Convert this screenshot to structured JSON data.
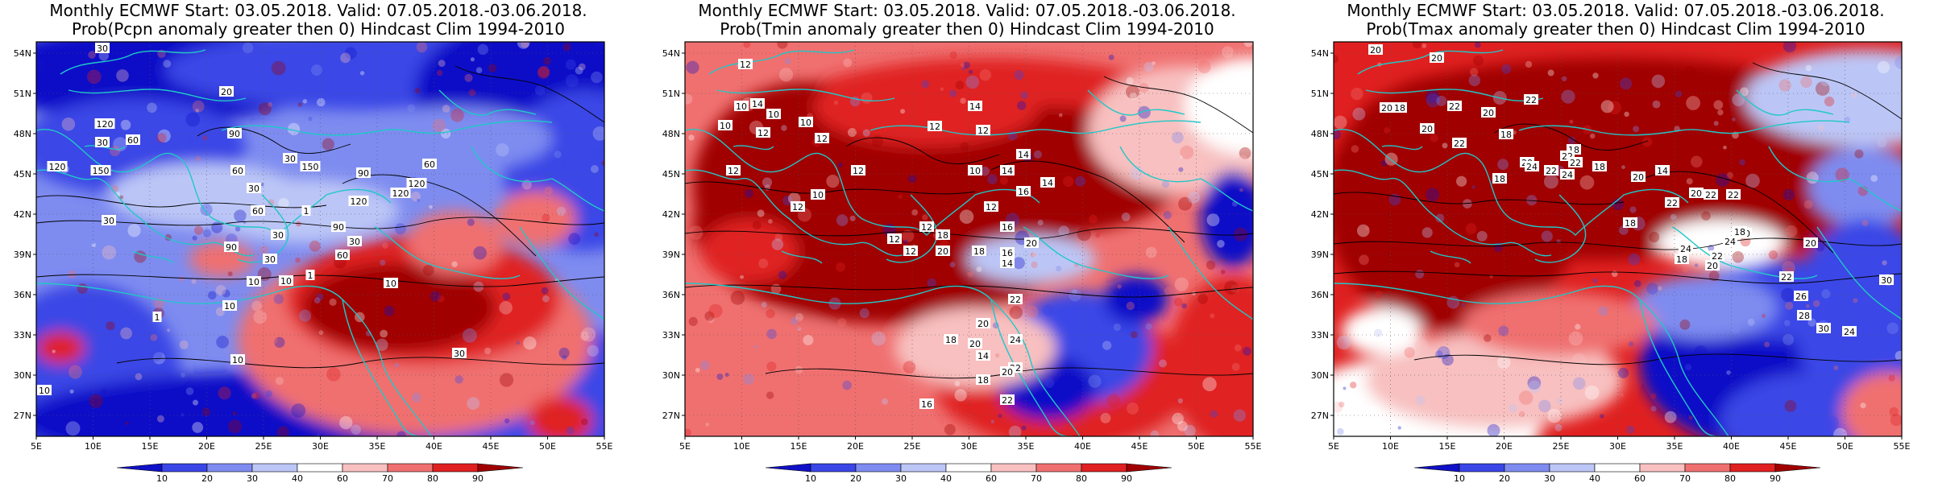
{
  "panels": [
    {
      "title_line1": "Monthly ECMWF Start: 03.05.2018. Valid: 07.05.2018.-03.06.2018.",
      "title_line2": "Prob(Pcpn anomaly greater then 0) Hindcast Clim 1994-2010",
      "field": "precipitation",
      "contour_labels": [
        "30",
        "20",
        "60",
        "30",
        "120",
        "150",
        "120",
        "90",
        "30",
        "60",
        "150",
        "90",
        "120",
        "120",
        "120",
        "60",
        "30",
        "60",
        "30",
        "90",
        "10",
        "30",
        "10",
        "30",
        "10",
        "60",
        "90",
        "30",
        "10",
        "1",
        "1",
        "1",
        "10",
        "10",
        "30"
      ]
    },
    {
      "title_line1": "Monthly ECMWF Start: 03.05.2018. Valid: 07.05.2018.-03.06.2018.",
      "title_line2": "Prob(Tmin anomaly greater then 0) Hindcast Clim 1994-2010",
      "field": "tmin",
      "contour_labels": [
        "12",
        "10",
        "12",
        "10",
        "10",
        "10",
        "14",
        "12",
        "12",
        "10",
        "12",
        "14",
        "12",
        "14",
        "14",
        "16",
        "10",
        "12",
        "12",
        "14",
        "12",
        "16",
        "12",
        "14",
        "18",
        "20",
        "18",
        "20",
        "16",
        "20",
        "22",
        "24",
        "18",
        "20",
        "22",
        "18",
        "22",
        "20",
        "16",
        "14",
        "12",
        "12"
      ]
    },
    {
      "title_line1": "Monthly ECMWF Start: 03.05.2018. Valid: 07.05.2018.-03.06.2018.",
      "title_line2": "Prob(Tmax anomaly greater then 0) Hindcast Clim 1994-2010",
      "field": "tmax",
      "contour_labels": [
        "20",
        "20",
        "18",
        "20",
        "22",
        "20",
        "22",
        "18",
        "20",
        "22",
        "18",
        "22",
        "20",
        "22",
        "24",
        "22",
        "24",
        "18",
        "18",
        "20",
        "14",
        "22",
        "20",
        "18",
        "24",
        "22",
        "18",
        "20",
        "24",
        "20",
        "22",
        "26",
        "28",
        "30",
        "24",
        "30",
        "20",
        "22",
        "22",
        "18"
      ]
    }
  ],
  "axes": {
    "lon_ticks": [
      "5E",
      "10E",
      "15E",
      "20E",
      "25E",
      "30E",
      "35E",
      "40E",
      "45E",
      "50E",
      "55E"
    ],
    "lat_ticks": [
      "54N",
      "51N",
      "48N",
      "45N",
      "42N",
      "39N",
      "36N",
      "33N",
      "30N",
      "27N"
    ]
  },
  "colorbar": {
    "labels": [
      "10",
      "20",
      "30",
      "40",
      "60",
      "70",
      "80",
      "90"
    ],
    "colors": [
      "#1010c8",
      "#3a46e6",
      "#7e8cf0",
      "#bcc6f6",
      "#ffffff",
      "#f8c0c0",
      "#f07070",
      "#e02020",
      "#a00000"
    ]
  },
  "colors": {
    "coast": "#20c8c8",
    "contour": "#000000"
  }
}
